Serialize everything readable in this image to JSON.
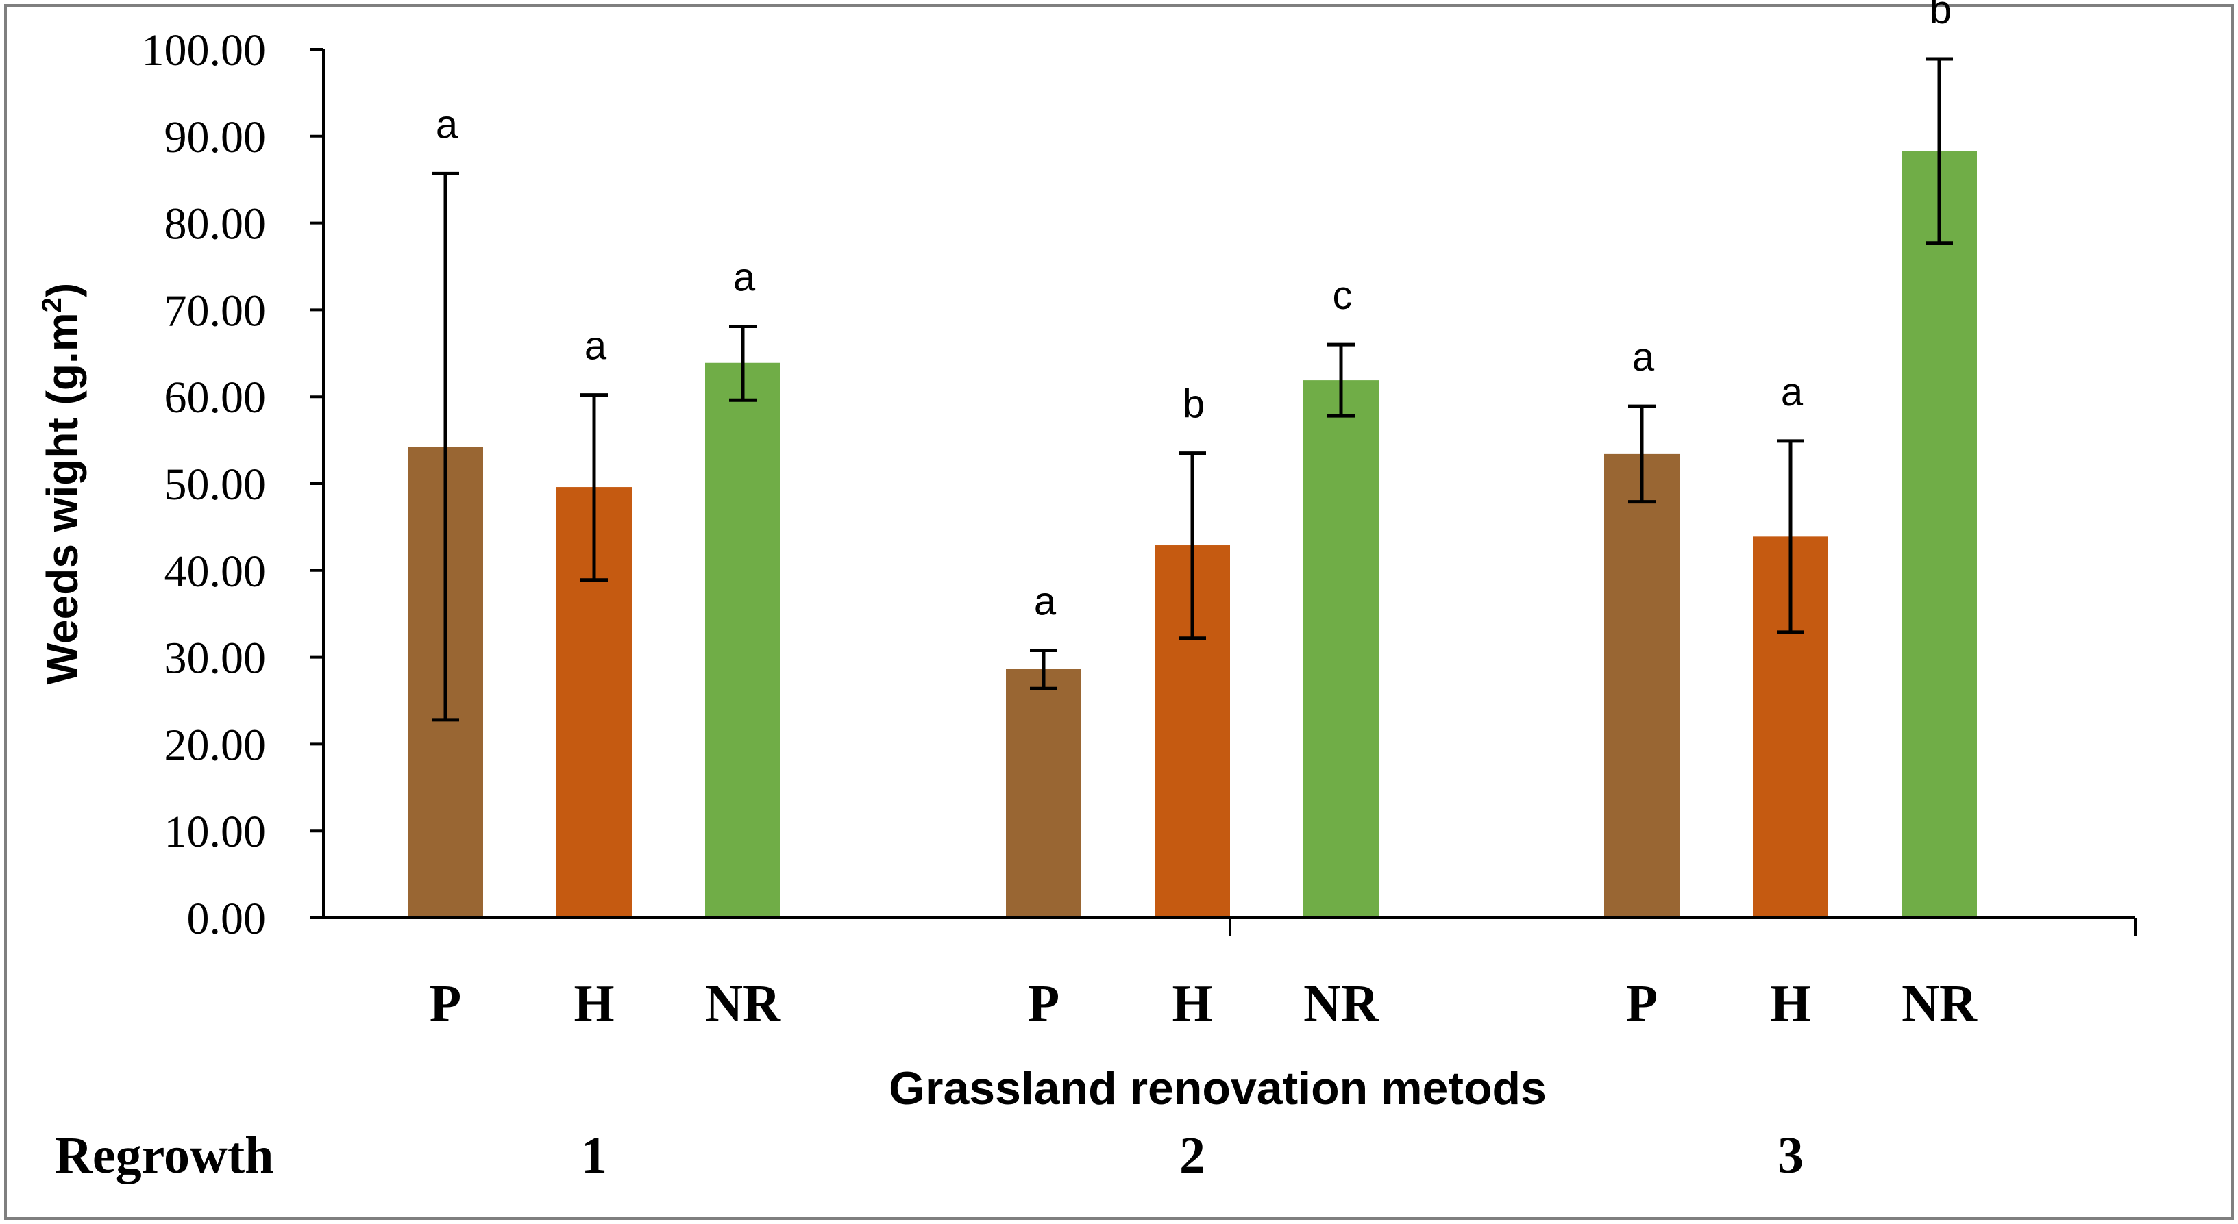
{
  "chart_data": {
    "type": "bar",
    "ylabel_main": "Weeds wight (g.m",
    "ylabel_sup": "2",
    "ylabel_close": ")",
    "xlabel": "Grassland renovation metods",
    "group_label": "Regrowth",
    "groups": [
      "1",
      "2",
      "3"
    ],
    "categories": [
      "P",
      "H",
      "NR"
    ],
    "ylim": [
      0,
      100
    ],
    "yticks": [
      "0.00",
      "10.00",
      "20.00",
      "30.00",
      "40.00",
      "50.00",
      "60.00",
      "70.00",
      "80.00",
      "90.00",
      "100.00"
    ],
    "colors": {
      "P": "#996633",
      "H": "#c55a11",
      "NR": "#70ad47"
    },
    "bars": [
      {
        "group": "1",
        "category": "P",
        "value": 54.2,
        "err_low": 22.8,
        "err_high": 85.7,
        "letter": "a"
      },
      {
        "group": "1",
        "category": "H",
        "value": 49.6,
        "err_low": 38.9,
        "err_high": 60.2,
        "letter": "a"
      },
      {
        "group": "1",
        "category": "NR",
        "value": 63.9,
        "err_low": 59.6,
        "err_high": 68.1,
        "letter": "a"
      },
      {
        "group": "2",
        "category": "P",
        "value": 28.7,
        "err_low": 26.4,
        "err_high": 30.8,
        "letter": "a"
      },
      {
        "group": "2",
        "category": "H",
        "value": 42.9,
        "err_low": 32.2,
        "err_high": 53.5,
        "letter": "b"
      },
      {
        "group": "2",
        "category": "NR",
        "value": 61.9,
        "err_low": 57.8,
        "err_high": 66.0,
        "letter": "c"
      },
      {
        "group": "3",
        "category": "P",
        "value": 53.4,
        "err_low": 47.9,
        "err_high": 58.9,
        "letter": "a"
      },
      {
        "group": "3",
        "category": "H",
        "value": 43.9,
        "err_low": 32.9,
        "err_high": 54.9,
        "letter": "a"
      },
      {
        "group": "3",
        "category": "NR",
        "value": 88.3,
        "err_low": 77.7,
        "err_high": 98.9,
        "letter": "b"
      }
    ]
  }
}
